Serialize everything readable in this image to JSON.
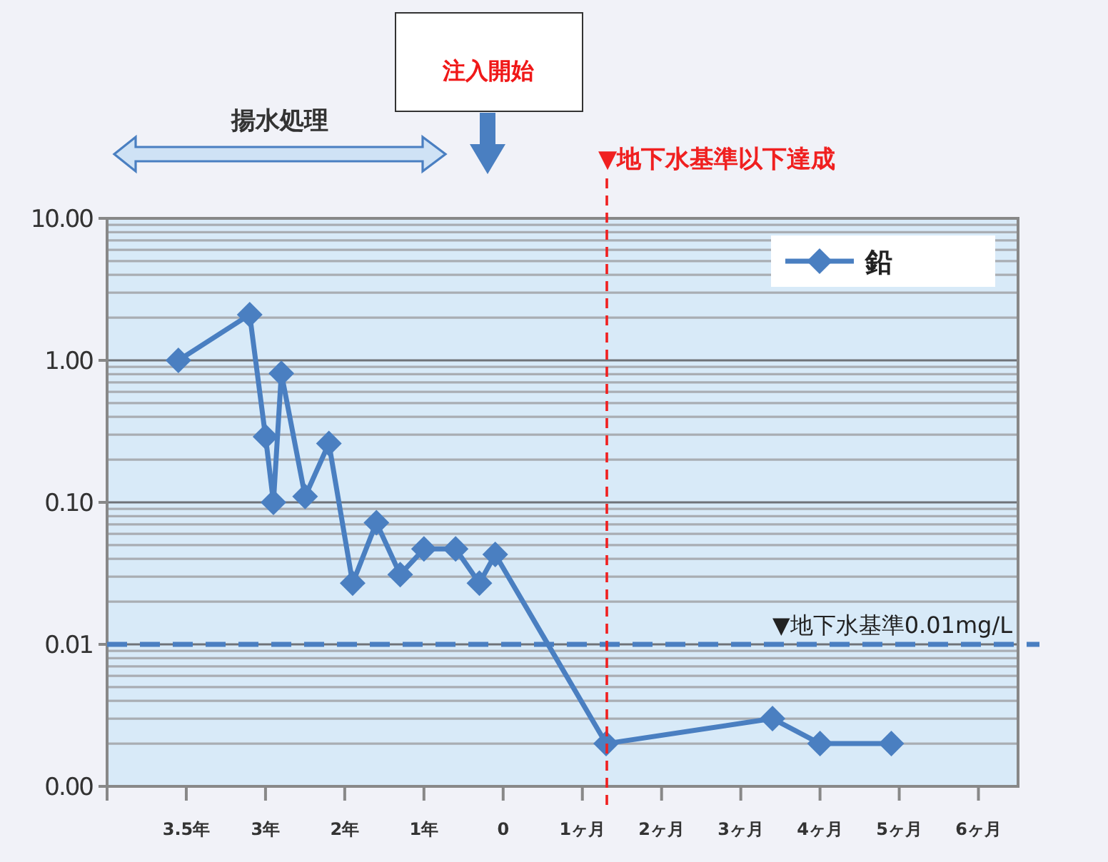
{
  "chart_data": {
    "type": "line",
    "marker": "diamond",
    "line_style": "solid",
    "log": "y",
    "grid": "y",
    "legend": "top right",
    "categories": [
      null,
      null,
      null,
      null,
      null,
      null,
      null,
      null,
      null,
      null,
      "3.5年",
      null,
      null,
      null,
      null,
      null,
      null,
      null,
      null,
      null,
      "3年",
      null,
      null,
      null,
      null,
      null,
      null,
      null,
      null,
      null,
      "2年",
      null,
      null,
      null,
      null,
      null,
      null,
      null,
      null,
      null,
      "1年",
      null,
      null,
      null,
      null,
      null,
      null,
      null,
      null,
      null,
      "0",
      null,
      null,
      null,
      null,
      null,
      null,
      null,
      null,
      null,
      "1ヶ月",
      null,
      null,
      null,
      null,
      null,
      null,
      null,
      null,
      null,
      "2ヶ月",
      null,
      null,
      null,
      null,
      null,
      null,
      null,
      null,
      null,
      "3ヶ月",
      null,
      null,
      null,
      null,
      null,
      null,
      null,
      null,
      null,
      "4ヶ月",
      null,
      null,
      null,
      null,
      null,
      null,
      null,
      null,
      null,
      "5ヶ月",
      null,
      null,
      null,
      null,
      null,
      null,
      null,
      null,
      null,
      "6ヶ月",
      null,
      null,
      null,
      null,
      null
    ],
    "series": [
      {
        "name": "鉛",
        "color": "#4a7fc1",
        "values": [
          null,
          null,
          null,
          null,
          null,
          null,
          null,
          null,
          null,
          1.0,
          null,
          null,
          null,
          null,
          null,
          null,
          null,
          null,
          2.1,
          null,
          0.29,
          0.1,
          0.81,
          null,
          null,
          0.11,
          null,
          null,
          0.26,
          null,
          null,
          0.027,
          null,
          null,
          0.072,
          null,
          null,
          0.031,
          null,
          null,
          0.047,
          null,
          null,
          null,
          0.047,
          null,
          null,
          0.027,
          null,
          0.043,
          null,
          null,
          null,
          null,
          null,
          null,
          null,
          null,
          null,
          null,
          null,
          null,
          null,
          0.002,
          null,
          null,
          null,
          null,
          null,
          null,
          null,
          null,
          null,
          null,
          null,
          null,
          null,
          null,
          null,
          null,
          null,
          null,
          null,
          null,
          0.003,
          null,
          null,
          null,
          null,
          null,
          0.002,
          null,
          null,
          null,
          null,
          null,
          null,
          null,
          null,
          0.002,
          null,
          null,
          null,
          null,
          null,
          null,
          null,
          null,
          null,
          null,
          null,
          null,
          null,
          null,
          null,
          null
        ]
      }
    ],
    "ylim": [
      0.001,
      10
    ],
    "yticks": [
      {
        "value": 0.001,
        "label": "0.00"
      },
      {
        "value": 0.01,
        "label": "0.01"
      },
      {
        "value": 0.1,
        "label": "0.10"
      },
      {
        "value": 1,
        "label": "1.00"
      },
      {
        "value": 10,
        "label": "10.00"
      }
    ],
    "ref_lines": [
      {
        "axis": "y",
        "value": 0.01,
        "label": "▼地下水基準0.01mg/L",
        "color": "#4a7fc1",
        "line_style": "dashed"
      }
    ],
    "annotations": [
      "揚水処理",
      "注入開始",
      "▼地下水基準以下達成"
    ]
  }
}
